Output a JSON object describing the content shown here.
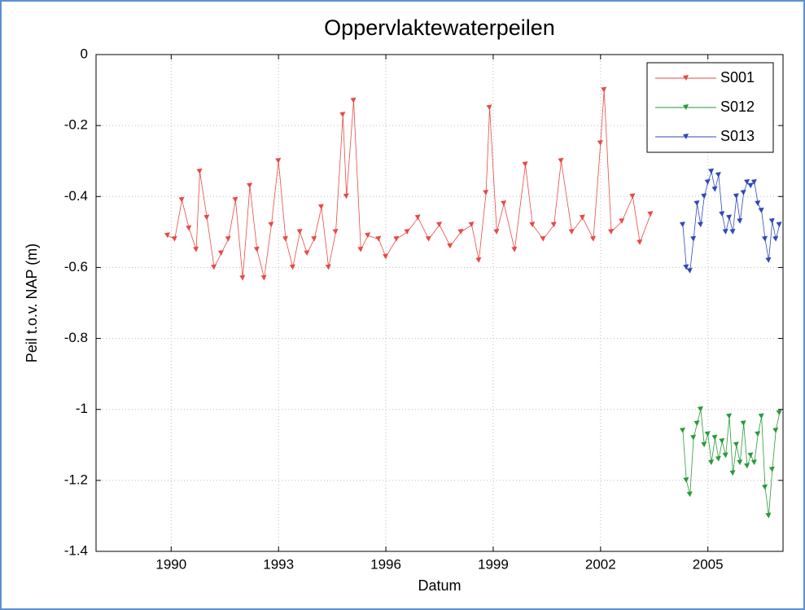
{
  "chart_data": {
    "type": "line",
    "title": "Oppervlaktewaterpeilen",
    "x_label": "Datum",
    "y_label": "Peil t.o.v. NAP (m)",
    "xlim": [
      1987.9,
      2007.1
    ],
    "xticks": [
      1990,
      1993,
      1996,
      1999,
      2002,
      2005
    ],
    "ylim": [
      -1.4,
      0
    ],
    "yticks": [
      0,
      -0.2,
      -0.4,
      -0.6,
      -0.8,
      -1,
      -1.2,
      -1.4
    ],
    "grid": true,
    "legend": "upper-right",
    "series": [
      {
        "name": "S001",
        "color": "#e84a45",
        "x": [
          1989.9,
          1990.1,
          1990.3,
          1990.5,
          1990.7,
          1990.8,
          1991.0,
          1991.2,
          1991.4,
          1991.6,
          1991.8,
          1992.0,
          1992.2,
          1992.4,
          1992.6,
          1992.8,
          1993.0,
          1993.2,
          1993.4,
          1993.6,
          1993.8,
          1994.0,
          1994.2,
          1994.4,
          1994.6,
          1994.8,
          1994.9,
          1995.1,
          1995.3,
          1995.5,
          1995.8,
          1996.0,
          1996.3,
          1996.6,
          1996.9,
          1997.2,
          1997.5,
          1997.8,
          1998.1,
          1998.4,
          1998.6,
          1998.8,
          1998.9,
          1999.1,
          1999.3,
          1999.6,
          1999.9,
          2000.1,
          2000.4,
          2000.7,
          2000.9,
          2001.2,
          2001.5,
          2001.8,
          2002.0,
          2002.1,
          2002.3,
          2002.6,
          2002.9,
          2003.1,
          2003.4
        ],
        "values": [
          -0.51,
          -0.52,
          -0.41,
          -0.49,
          -0.55,
          -0.33,
          -0.46,
          -0.6,
          -0.56,
          -0.52,
          -0.41,
          -0.63,
          -0.37,
          -0.55,
          -0.63,
          -0.48,
          -0.3,
          -0.52,
          -0.6,
          -0.5,
          -0.56,
          -0.52,
          -0.43,
          -0.6,
          -0.5,
          -0.17,
          -0.4,
          -0.13,
          -0.55,
          -0.51,
          -0.52,
          -0.57,
          -0.52,
          -0.5,
          -0.46,
          -0.52,
          -0.48,
          -0.54,
          -0.5,
          -0.48,
          -0.58,
          -0.39,
          -0.15,
          -0.5,
          -0.42,
          -0.55,
          -0.31,
          -0.48,
          -0.52,
          -0.48,
          -0.3,
          -0.5,
          -0.46,
          -0.52,
          -0.25,
          -0.1,
          -0.5,
          -0.47,
          -0.4,
          -0.53,
          -0.45
        ]
      },
      {
        "name": "S012",
        "color": "#2a9a3a",
        "x": [
          2004.3,
          2004.4,
          2004.5,
          2004.6,
          2004.7,
          2004.8,
          2004.9,
          2005.0,
          2005.1,
          2005.2,
          2005.3,
          2005.4,
          2005.5,
          2005.6,
          2005.7,
          2005.8,
          2005.9,
          2006.0,
          2006.1,
          2006.2,
          2006.3,
          2006.4,
          2006.5,
          2006.6,
          2006.7,
          2006.8,
          2006.9,
          2007.0
        ],
        "values": [
          -1.06,
          -1.2,
          -1.24,
          -1.08,
          -1.04,
          -1.0,
          -1.1,
          -1.07,
          -1.15,
          -1.08,
          -1.14,
          -1.09,
          -1.13,
          -1.02,
          -1.18,
          -1.1,
          -1.15,
          -1.04,
          -1.16,
          -1.13,
          -1.15,
          -1.07,
          -1.02,
          -1.22,
          -1.3,
          -1.17,
          -1.06,
          -1.01
        ]
      },
      {
        "name": "S013",
        "color": "#3048b8",
        "x": [
          2004.3,
          2004.4,
          2004.5,
          2004.6,
          2004.7,
          2004.8,
          2004.9,
          2005.0,
          2005.1,
          2005.2,
          2005.3,
          2005.4,
          2005.5,
          2005.6,
          2005.7,
          2005.8,
          2005.9,
          2006.0,
          2006.1,
          2006.2,
          2006.3,
          2006.4,
          2006.5,
          2006.6,
          2006.7,
          2006.8,
          2006.9,
          2007.0
        ],
        "values": [
          -0.48,
          -0.6,
          -0.61,
          -0.52,
          -0.42,
          -0.48,
          -0.4,
          -0.36,
          -0.33,
          -0.38,
          -0.34,
          -0.45,
          -0.5,
          -0.46,
          -0.5,
          -0.4,
          -0.47,
          -0.39,
          -0.36,
          -0.37,
          -0.36,
          -0.42,
          -0.44,
          -0.52,
          -0.58,
          -0.47,
          -0.52,
          -0.48
        ]
      }
    ]
  }
}
